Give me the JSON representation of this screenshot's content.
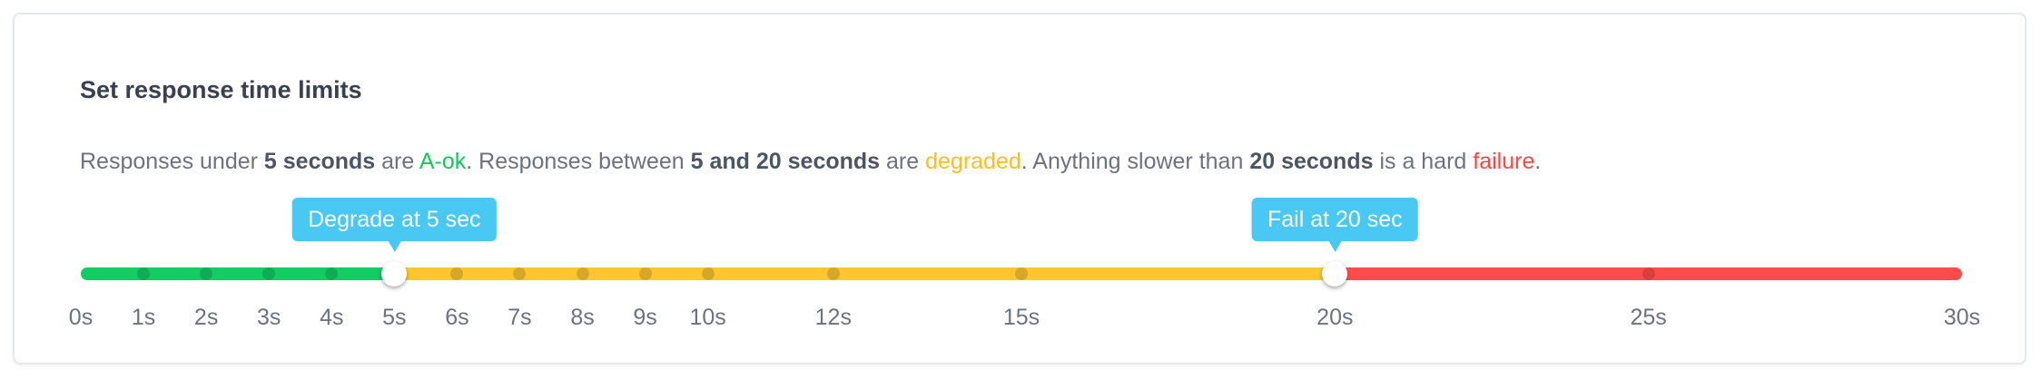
{
  "title": "Set response time limits",
  "description": {
    "p1": "Responses under ",
    "b1": "5 seconds",
    "p2": " are ",
    "ok": "A-ok",
    "p3": ". Responses between ",
    "b2": "5 and 20 seconds",
    "p4": " are ",
    "degraded": "degraded",
    "p5": ". Anything slower than ",
    "b3": "20 seconds",
    "p6": " is a hard ",
    "failure": "failure",
    "p7": "."
  },
  "slider": {
    "min": 0,
    "max": 30,
    "degrade_value": 5,
    "fail_value": 20,
    "degrade_label": "Degrade at 5 sec",
    "fail_label": "Fail at 20 sec",
    "ticks": [
      0,
      1,
      2,
      3,
      4,
      5,
      6,
      7,
      8,
      9,
      10,
      12,
      15,
      20,
      25,
      30
    ],
    "tick_labels": [
      "0s",
      "1s",
      "2s",
      "3s",
      "4s",
      "5s",
      "6s",
      "7s",
      "8s",
      "9s",
      "10s",
      "12s",
      "15s",
      "20s",
      "25s",
      "30s"
    ],
    "colors": {
      "ok": "#12cc64",
      "degraded": "#fdc62f",
      "failure": "#ff4b4b",
      "tooltip": "#48c8f2"
    }
  }
}
